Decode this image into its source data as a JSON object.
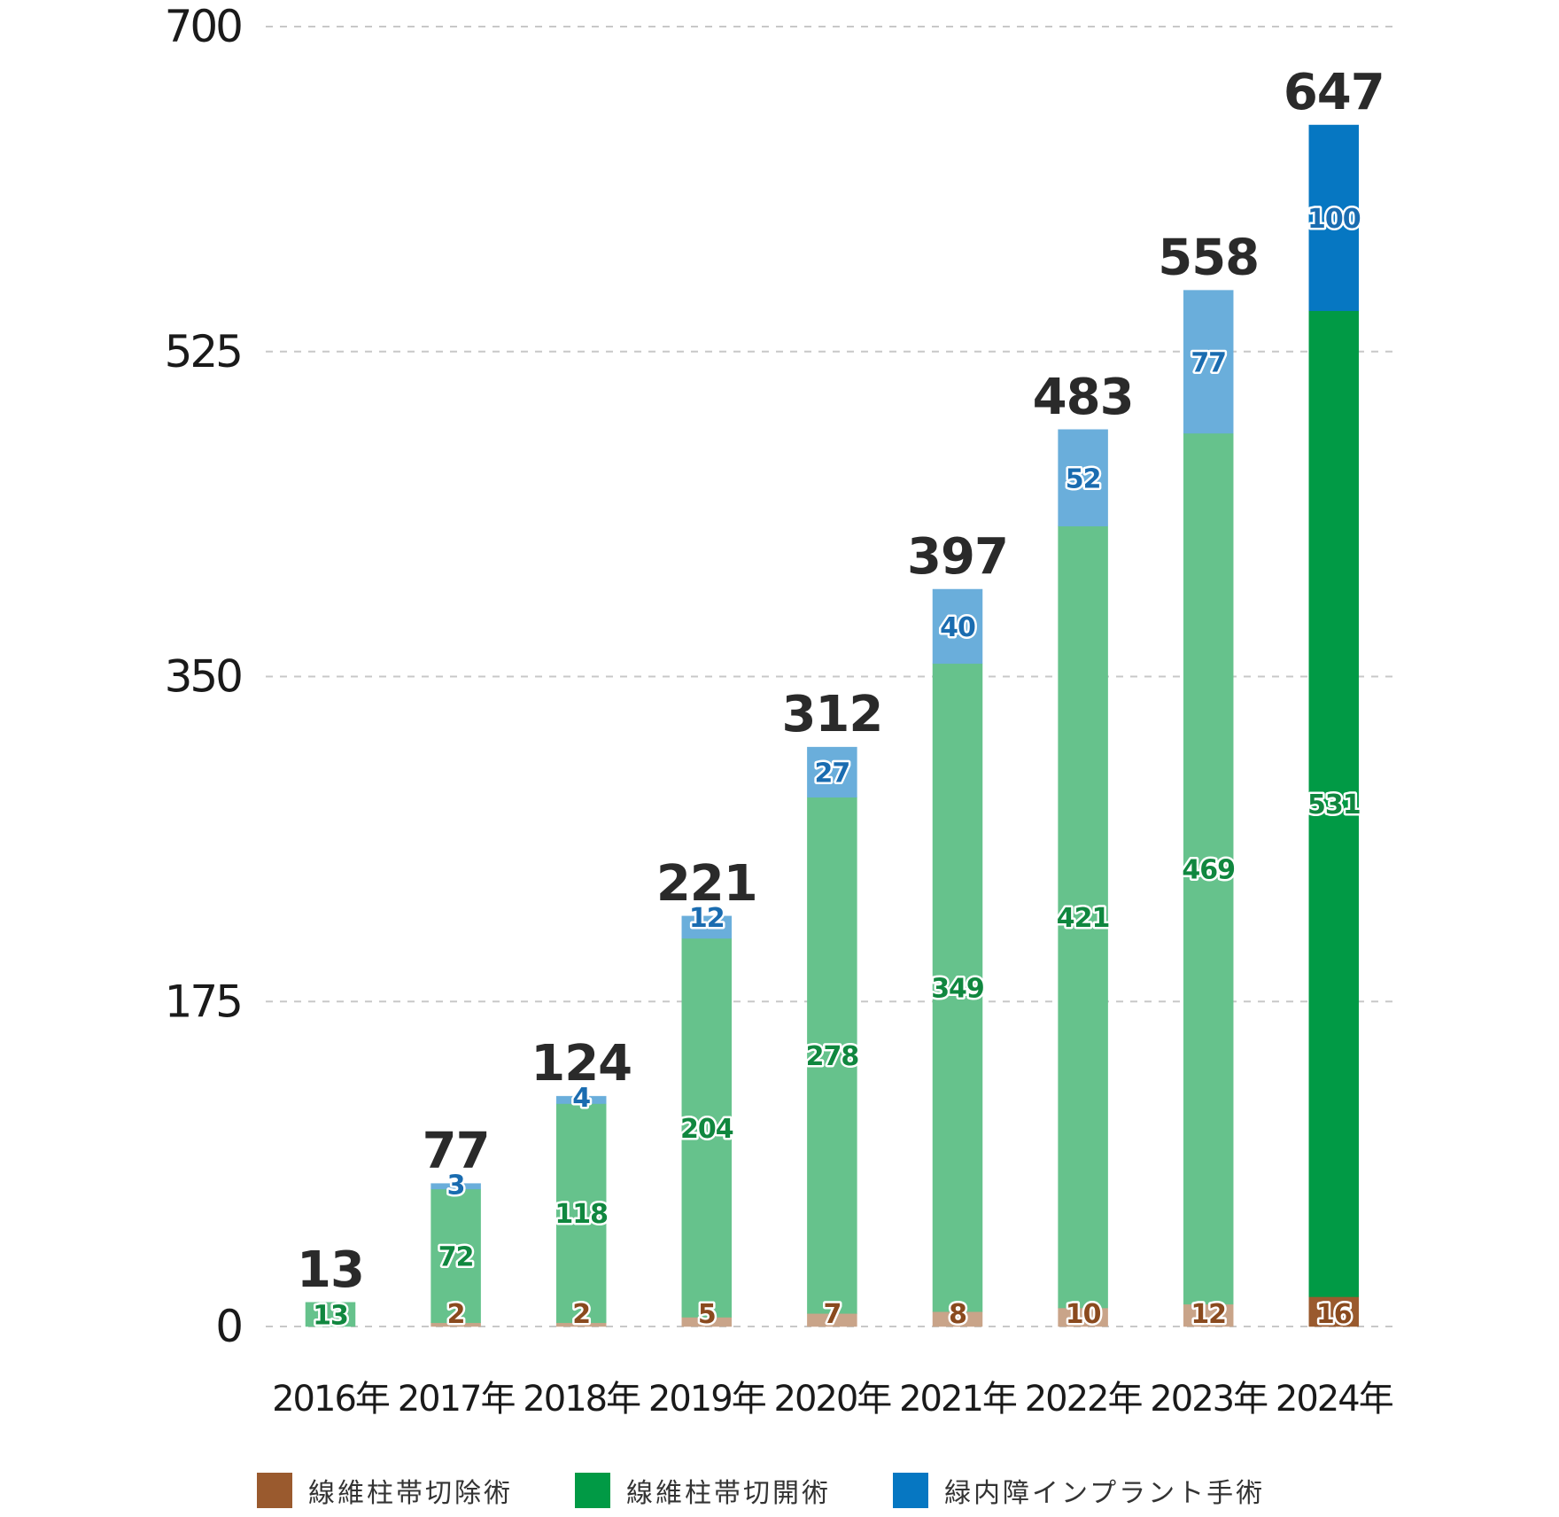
{
  "chart_data": {
    "type": "bar",
    "stacked": true,
    "categories": [
      "2016年",
      "2017年",
      "2018年",
      "2019年",
      "2020年",
      "2021年",
      "2022年",
      "2023年",
      "2024年"
    ],
    "series": [
      {
        "name": "線維柱帯切除術",
        "values": [
          0,
          2,
          2,
          5,
          7,
          8,
          10,
          12,
          16
        ],
        "labels": [
          "",
          "2",
          "2",
          "5",
          "7",
          "8",
          "10",
          "12",
          "16"
        ]
      },
      {
        "name": "線維柱帯切開術",
        "values": [
          13,
          72,
          118,
          204,
          278,
          349,
          421,
          469,
          531
        ],
        "labels": [
          "13",
          "72",
          "118",
          "204",
          "278",
          "349",
          "421",
          "469",
          "531"
        ]
      },
      {
        "name": "緑内障インプラント手術",
        "values": [
          0,
          3,
          4,
          12,
          27,
          40,
          52,
          77,
          100
        ],
        "labels": [
          "",
          "3",
          "4",
          "12",
          "27",
          "40",
          "52",
          "77",
          "100"
        ]
      }
    ],
    "totals": [
      "13",
      "77",
      "124",
      "221",
      "312",
      "397",
      "483",
      "558",
      "647"
    ],
    "yticks": [
      "0",
      "175",
      "350",
      "525",
      "700"
    ],
    "ylim": [
      0,
      700
    ],
    "grid": true,
    "legend_position": "bottom",
    "colors": {
      "excision_light": "#c9a489",
      "excision_dark": "#9a5a2e",
      "excision_label": "#8a4a1e",
      "opening_light": "#66c28c",
      "opening_dark": "#019a45",
      "opening_label": "#10873f",
      "implant_light": "#6aaedb",
      "implant_dark": "#0677c2",
      "implant_label": "#1a6cb0",
      "grid": "#c8c8c8"
    }
  },
  "legend": {
    "items": [
      {
        "label": "線維柱帯切除術",
        "color": "#9a5a2e"
      },
      {
        "label": "線維柱帯切開術",
        "color": "#019a45"
      },
      {
        "label": "緑内障インプラント手術",
        "color": "#0677c2"
      }
    ]
  }
}
